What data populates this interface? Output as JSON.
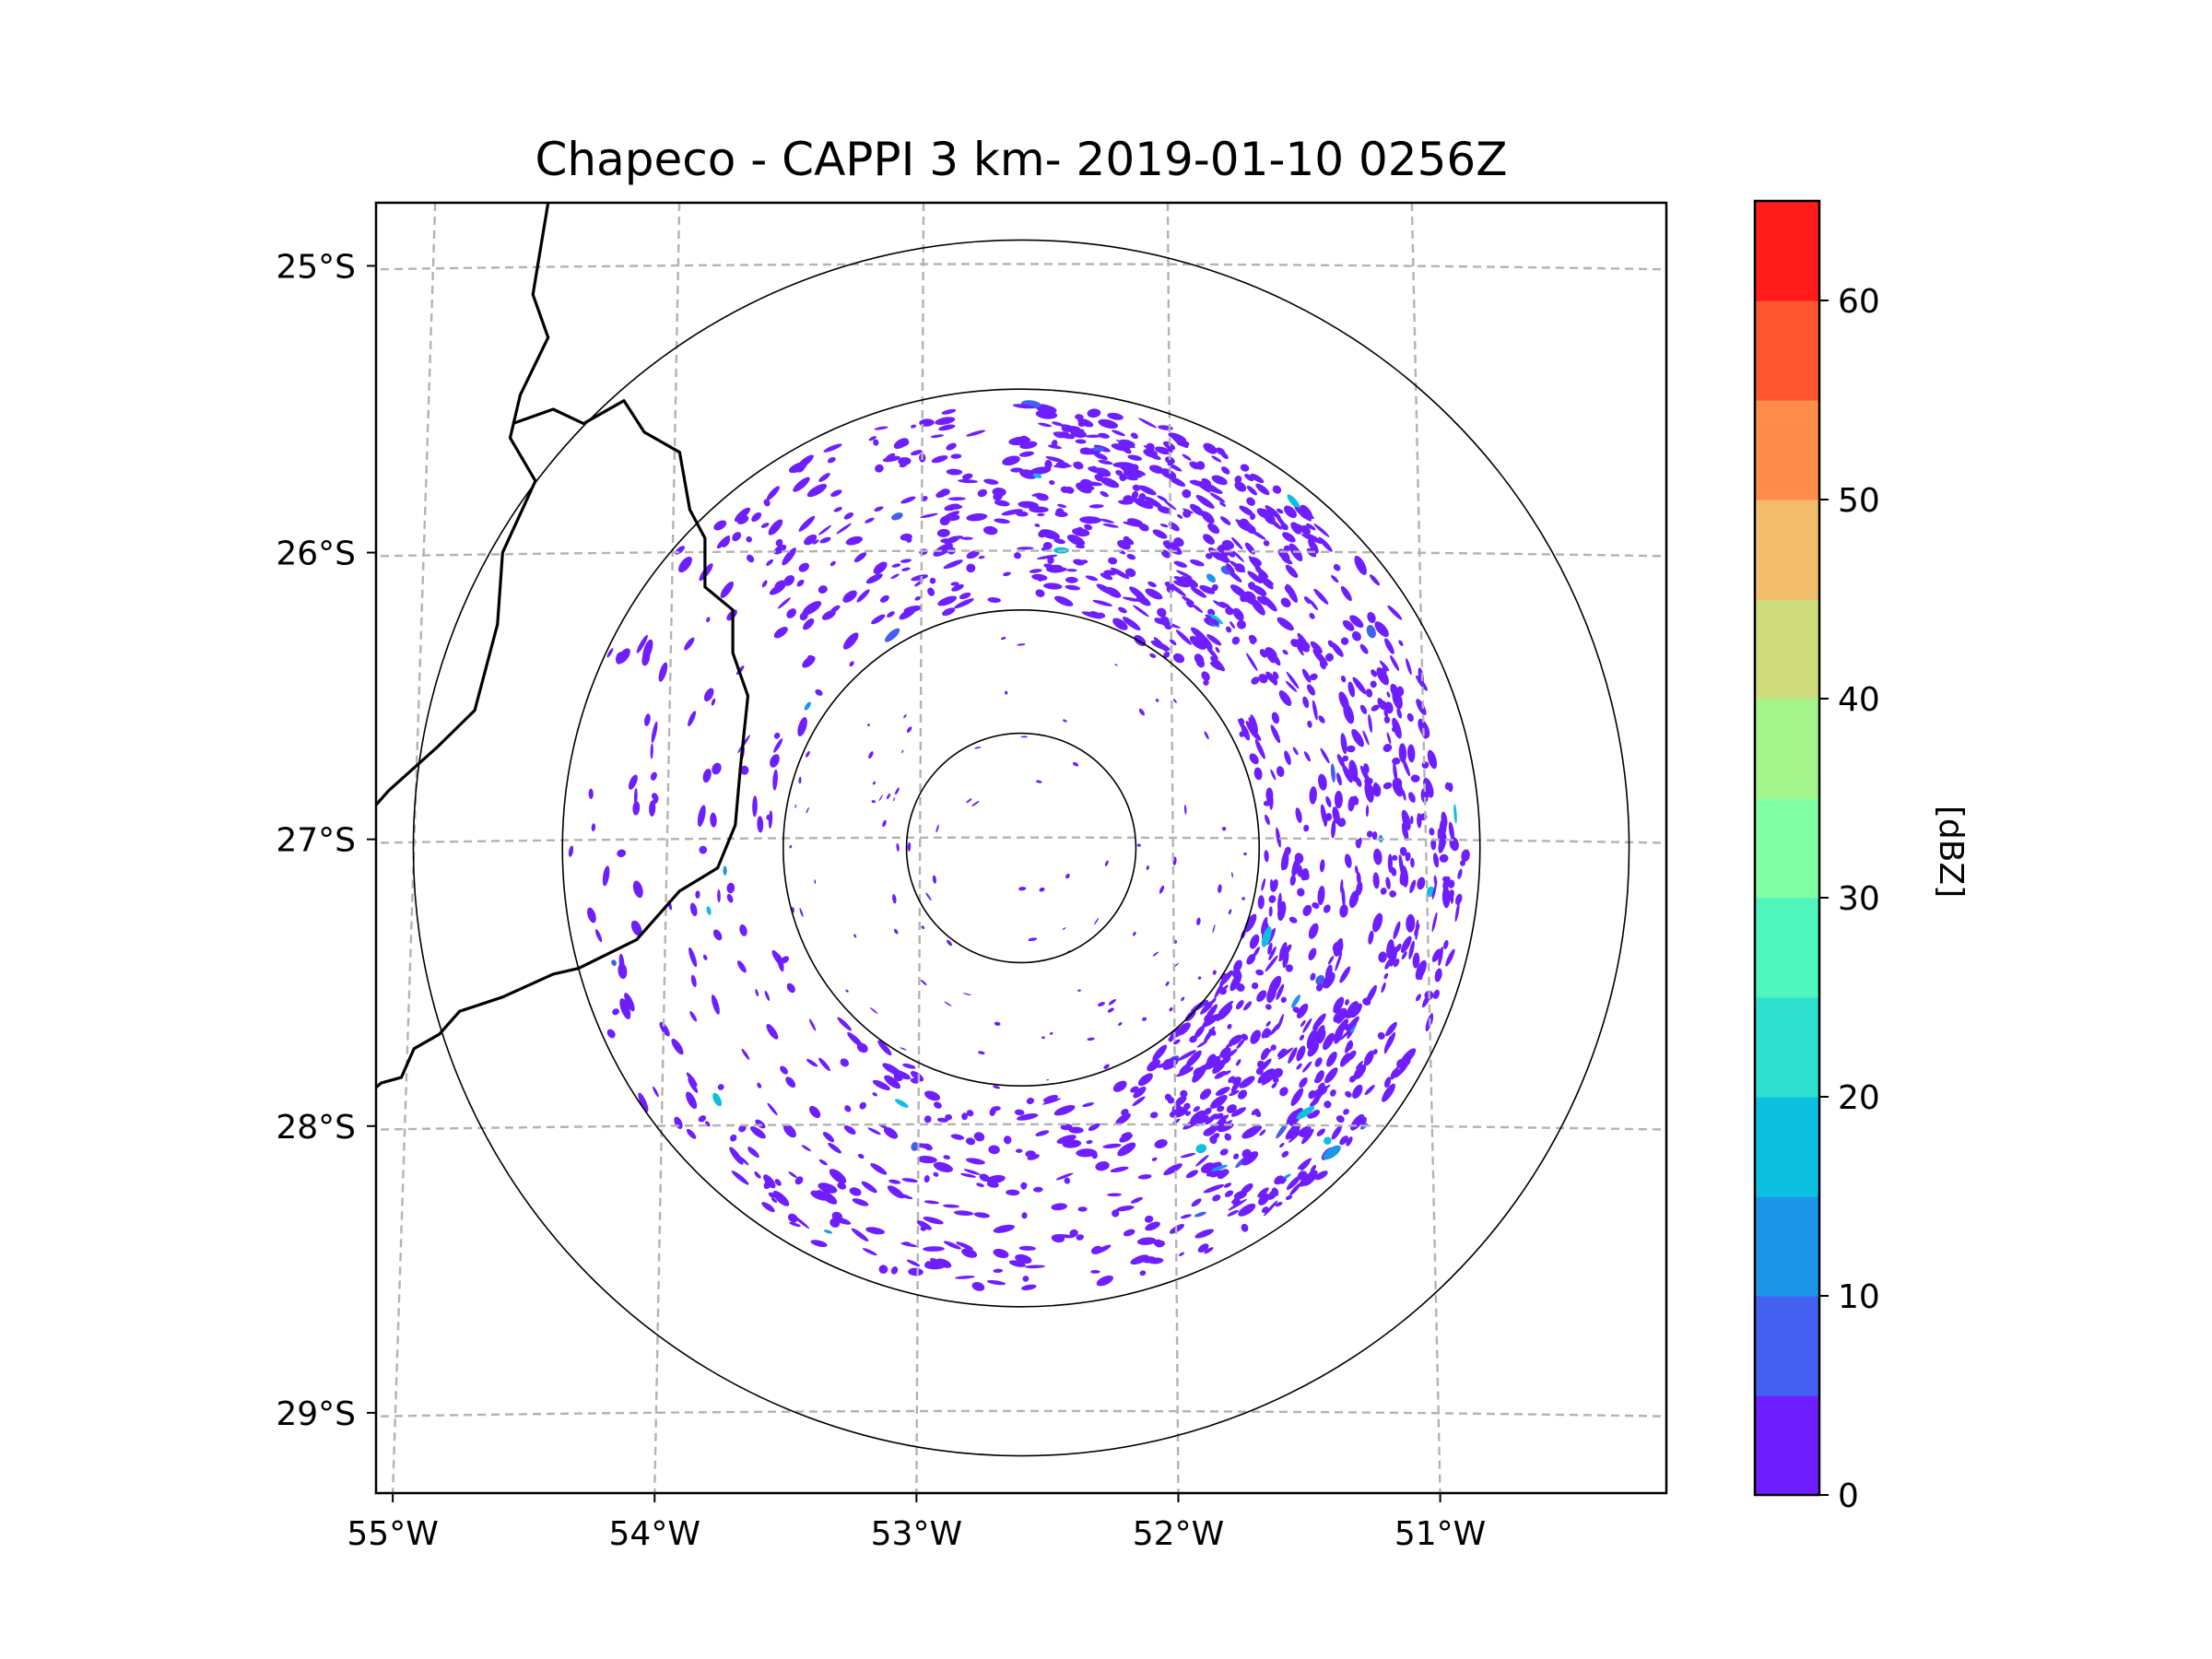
{
  "chart_data": {
    "type": "radar-map",
    "title": "Chapeco - CAPPI 3 km- 2019-01-10 0256Z",
    "radar_site": {
      "lon": -52.6,
      "lat": -27.03
    },
    "extent": {
      "lon": [
        -55.15,
        -50.05
      ],
      "lat": [
        -29.28,
        -24.78
      ]
    },
    "range_rings": [
      {
        "name": "ring-1",
        "radius_deg_lat": 0.4
      },
      {
        "name": "ring-2",
        "radius_deg_lat": 0.83
      },
      {
        "name": "ring-3",
        "radius_deg_lat": 1.6
      },
      {
        "name": "ring-4",
        "radius_deg_lat": 2.12
      }
    ],
    "x_ticks": [
      {
        "value": -55,
        "label": "55°W"
      },
      {
        "value": -54,
        "label": "54°W"
      },
      {
        "value": -53,
        "label": "53°W"
      },
      {
        "value": -52,
        "label": "52°W"
      },
      {
        "value": -51,
        "label": "51°W"
      }
    ],
    "y_ticks": [
      {
        "value": -25,
        "label": "25°S"
      },
      {
        "value": -26,
        "label": "26°S"
      },
      {
        "value": -27,
        "label": "27°S"
      },
      {
        "value": -28,
        "label": "28°S"
      },
      {
        "value": -29,
        "label": "29°S"
      }
    ],
    "gridlines": true,
    "colorbar": {
      "label": "[dBZ]",
      "min": 0,
      "max": 65,
      "ticks": [
        {
          "value": 0,
          "label": "0"
        },
        {
          "value": 10,
          "label": "10"
        },
        {
          "value": 20,
          "label": "20"
        },
        {
          "value": 30,
          "label": "30"
        },
        {
          "value": 40,
          "label": "40"
        },
        {
          "value": 50,
          "label": "50"
        },
        {
          "value": 60,
          "label": "60"
        }
      ],
      "bins": [
        {
          "from": 0,
          "to": 5,
          "color": "#6e1eff"
        },
        {
          "from": 5,
          "to": 10,
          "color": "#4460f0"
        },
        {
          "from": 10,
          "to": 15,
          "color": "#1c96e8"
        },
        {
          "from": 15,
          "to": 20,
          "color": "#0ec0e0"
        },
        {
          "from": 20,
          "to": 25,
          "color": "#2ee0d0"
        },
        {
          "from": 25,
          "to": 30,
          "color": "#4ef5bd"
        },
        {
          "from": 30,
          "to": 35,
          "color": "#80ffa4"
        },
        {
          "from": 35,
          "to": 40,
          "color": "#a4f48c"
        },
        {
          "from": 40,
          "to": 45,
          "color": "#cedc7c"
        },
        {
          "from": 45,
          "to": 50,
          "color": "#f2bc6c"
        },
        {
          "from": 50,
          "to": 55,
          "color": "#ff8c4a"
        },
        {
          "from": 55,
          "to": 60,
          "color": "#ff5632"
        },
        {
          "from": 60,
          "to": 65,
          "color": "#ff1c1a"
        }
      ]
    },
    "echo_field": {
      "dominant_value_dbz": 2,
      "max_range_deg_lat": 1.6,
      "sectors": [
        {
          "name": "ne-band",
          "az_from": 0,
          "az_to": 150,
          "r_from": 0.83,
          "r_to": 1.55,
          "density": 0.85
        },
        {
          "name": "north-arc",
          "az_from": 315,
          "az_to": 45,
          "r_from": 0.85,
          "r_to": 1.55,
          "density": 0.6
        },
        {
          "name": "south-arc",
          "az_from": 120,
          "az_to": 225,
          "r_from": 0.83,
          "r_to": 1.55,
          "density": 0.55
        },
        {
          "name": "west-sparse",
          "az_from": 225,
          "az_to": 315,
          "r_from": 0.85,
          "r_to": 1.6,
          "density": 0.2
        },
        {
          "name": "inner-scatter",
          "az_from": 0,
          "az_to": 360,
          "r_from": 0.1,
          "r_to": 0.83,
          "density": 0.12
        }
      ]
    },
    "borders": [
      {
        "name": "argentina-border",
        "points": [
          [
            -54.47,
            -24.78
          ],
          [
            -54.53,
            -25.1
          ],
          [
            -54.47,
            -25.25
          ],
          [
            -54.58,
            -25.45
          ],
          [
            -54.62,
            -25.6
          ],
          [
            -54.52,
            -25.75
          ],
          [
            -54.65,
            -26.0
          ],
          [
            -54.67,
            -26.25
          ],
          [
            -54.76,
            -26.55
          ],
          [
            -54.91,
            -26.68
          ],
          [
            -55.1,
            -26.83
          ],
          [
            -55.17,
            -26.9
          ]
        ]
      },
      {
        "name": "santa-catarina-border",
        "points": [
          [
            -54.61,
            -25.55
          ],
          [
            -54.45,
            -25.5
          ],
          [
            -54.33,
            -25.55
          ],
          [
            -54.17,
            -25.47
          ],
          [
            -54.09,
            -25.58
          ],
          [
            -53.95,
            -25.65
          ],
          [
            -53.91,
            -25.85
          ],
          [
            -53.85,
            -25.95
          ],
          [
            -53.85,
            -26.12
          ],
          [
            -53.74,
            -26.2
          ],
          [
            -53.74,
            -26.35
          ],
          [
            -53.68,
            -26.5
          ],
          [
            -53.71,
            -26.75
          ],
          [
            -53.73,
            -26.95
          ],
          [
            -53.8,
            -27.1
          ],
          [
            -53.95,
            -27.18
          ],
          [
            -54.12,
            -27.35
          ],
          [
            -54.35,
            -27.45
          ],
          [
            -54.45,
            -27.47
          ],
          [
            -54.65,
            -27.55
          ],
          [
            -54.82,
            -27.6
          ],
          [
            -54.9,
            -27.68
          ],
          [
            -55.0,
            -27.73
          ],
          [
            -55.05,
            -27.83
          ],
          [
            -55.13,
            -27.85
          ],
          [
            -55.17,
            -27.88
          ]
        ]
      }
    ]
  }
}
